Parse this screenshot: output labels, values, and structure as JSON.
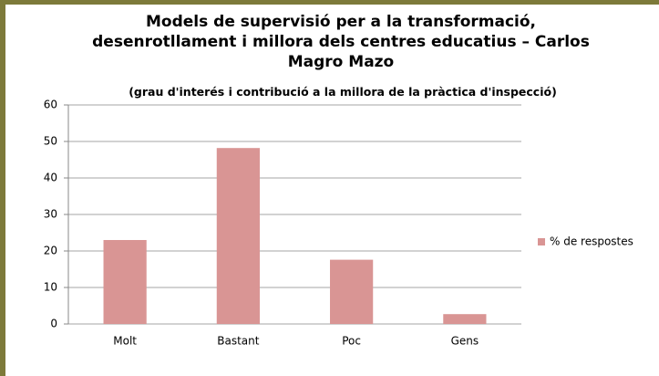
{
  "chart_data": {
    "type": "bar",
    "title": "Models de supervisió per a la transformació, desenrotllament i millora dels centres educatius – Carlos Magro Mazo",
    "subtitle": "(grau d'interés i contribució a la millora de la pràctica d'inspecció)",
    "categories": [
      "Molt",
      "Bastant",
      "Poc",
      "Gens"
    ],
    "series": [
      {
        "name": "% de respostes",
        "color": "#d99594",
        "values": [
          23,
          48.2,
          17.6,
          2.7
        ]
      }
    ],
    "ylim": [
      0,
      60
    ],
    "yticks": [
      0,
      10,
      20,
      30,
      40,
      50,
      60
    ],
    "grid": true,
    "legend": "right"
  }
}
